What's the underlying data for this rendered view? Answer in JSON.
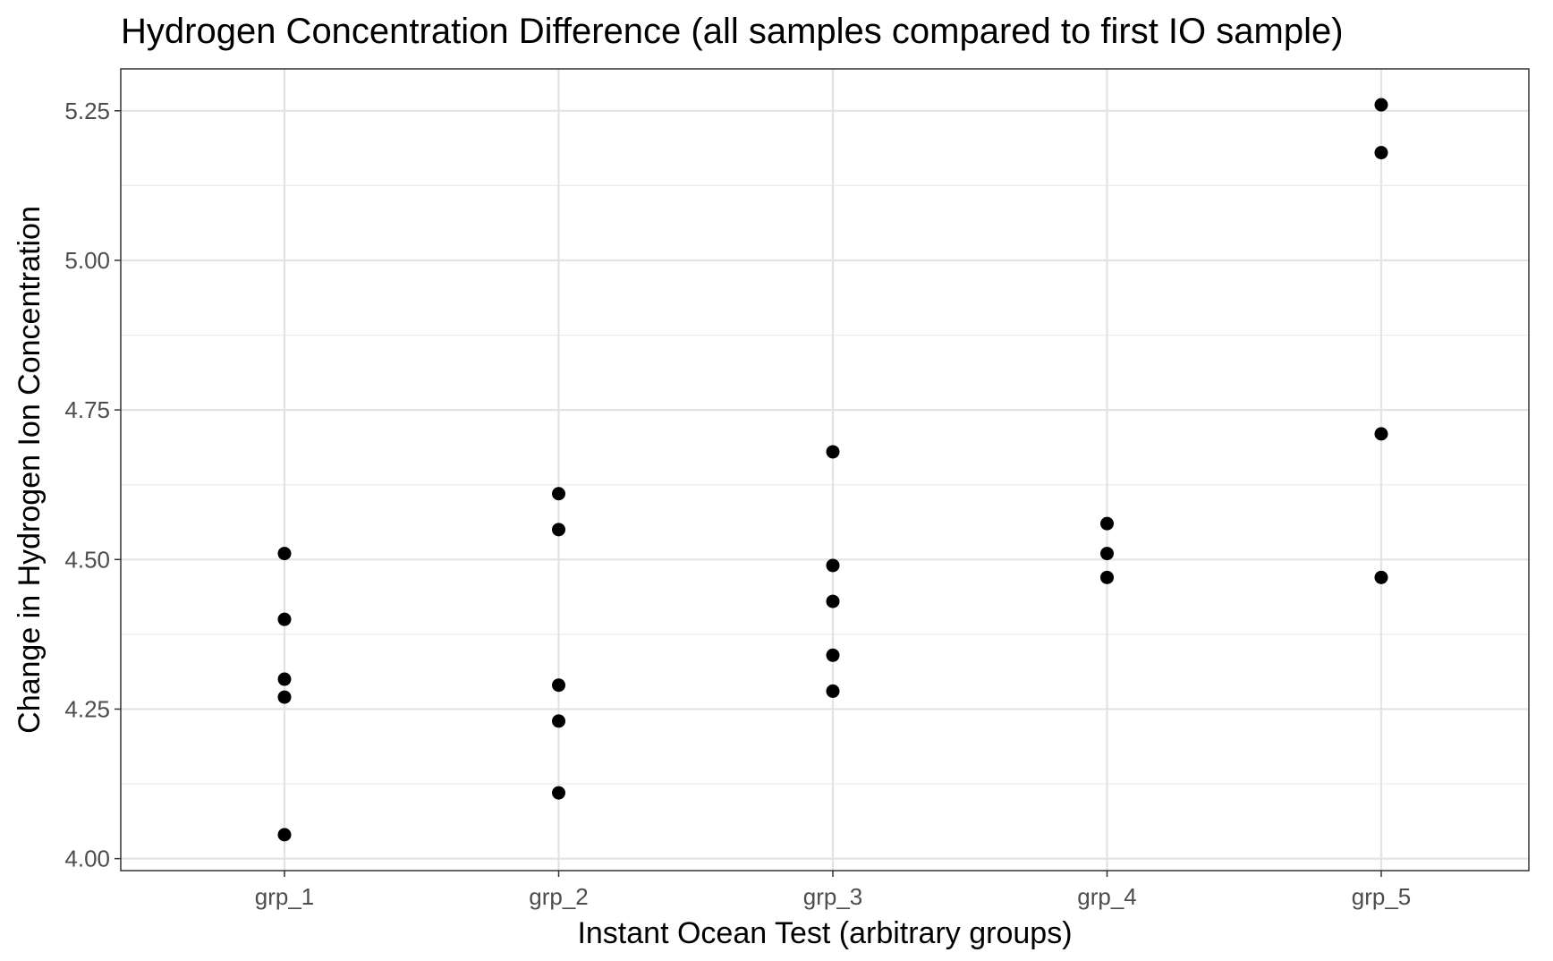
{
  "chart_data": {
    "type": "scatter",
    "title": "Hydrogen Concentration Difference (all samples compared to first IO sample)",
    "xlabel": "Instant Ocean Test (arbitrary groups)",
    "ylabel": "Change in Hydrogen Ion Concentration",
    "categories": [
      "grp_1",
      "grp_2",
      "grp_3",
      "grp_4",
      "grp_5"
    ],
    "ylim": [
      3.98,
      5.32
    ],
    "yticks": [
      4.0,
      4.25,
      4.5,
      4.75,
      5.0,
      5.25
    ],
    "ytick_labels": [
      "4.00",
      "4.25",
      "4.50",
      "4.75",
      "5.00",
      "5.25"
    ],
    "grid": true,
    "point_color": "#000000",
    "points": [
      {
        "x": "grp_1",
        "y": 4.51
      },
      {
        "x": "grp_1",
        "y": 4.4
      },
      {
        "x": "grp_1",
        "y": 4.3
      },
      {
        "x": "grp_1",
        "y": 4.27
      },
      {
        "x": "grp_1",
        "y": 4.04
      },
      {
        "x": "grp_2",
        "y": 4.61
      },
      {
        "x": "grp_2",
        "y": 4.55
      },
      {
        "x": "grp_2",
        "y": 4.29
      },
      {
        "x": "grp_2",
        "y": 4.23
      },
      {
        "x": "grp_2",
        "y": 4.11
      },
      {
        "x": "grp_3",
        "y": 4.68
      },
      {
        "x": "grp_3",
        "y": 4.49
      },
      {
        "x": "grp_3",
        "y": 4.43
      },
      {
        "x": "grp_3",
        "y": 4.34
      },
      {
        "x": "grp_3",
        "y": 4.28
      },
      {
        "x": "grp_4",
        "y": 4.56
      },
      {
        "x": "grp_4",
        "y": 4.51
      },
      {
        "x": "grp_4",
        "y": 4.47
      },
      {
        "x": "grp_5",
        "y": 5.26
      },
      {
        "x": "grp_5",
        "y": 5.18
      },
      {
        "x": "grp_5",
        "y": 4.71
      },
      {
        "x": "grp_5",
        "y": 4.47
      }
    ]
  }
}
